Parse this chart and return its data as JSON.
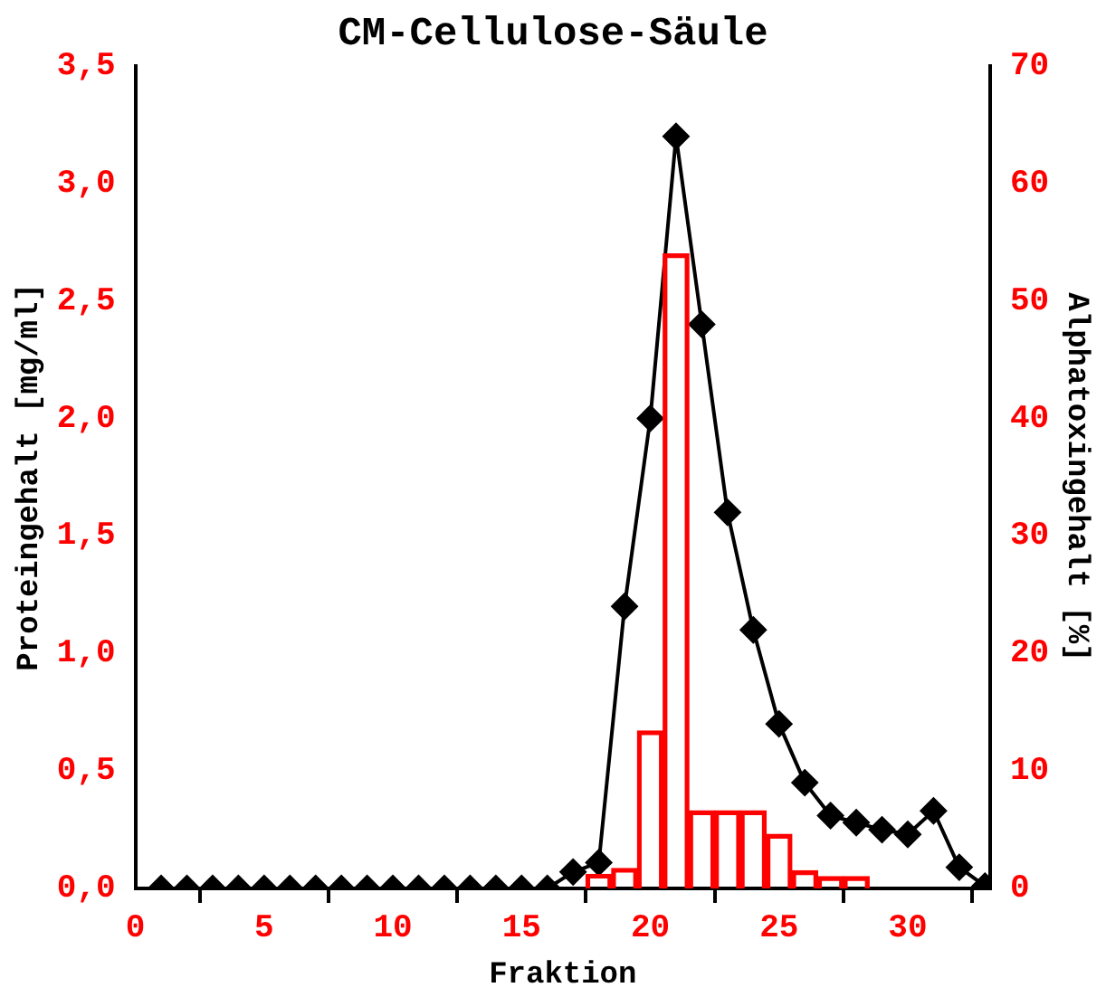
{
  "chart_data": {
    "type": "line",
    "title": "CM-Cellulose-Säule",
    "xlabel": "Fraktion",
    "ylabel": "Proteingehalt [mg/ml]",
    "y2label": "Alphatoxingehalt [%]",
    "xlim": [
      0,
      33.2
    ],
    "xticks": [
      0,
      5,
      10,
      15,
      20,
      25,
      30
    ],
    "ylim": [
      0,
      3.5
    ],
    "yticks": [
      {
        "value": 0,
        "label": "0,0"
      },
      {
        "value": 0.5,
        "label": "0,5"
      },
      {
        "value": 1,
        "label": "1,0"
      },
      {
        "value": 1.5,
        "label": "1,5"
      },
      {
        "value": 2,
        "label": "2,0"
      },
      {
        "value": 2.5,
        "label": "2,5"
      },
      {
        "value": 3,
        "label": "3,0"
      },
      {
        "value": 3.5,
        "label": "3,5"
      }
    ],
    "y2lim": [
      0,
      70
    ],
    "y2ticks": [
      0,
      10,
      20,
      30,
      40,
      50,
      60,
      70
    ],
    "grid": false,
    "legend": false,
    "marker": "diamond",
    "line_style": "solid",
    "series": [
      {
        "type": "bar",
        "axis": "y2",
        "color": "#ff0000",
        "x": [
          17,
          18,
          19,
          20,
          21,
          22,
          23,
          24,
          25,
          26,
          27,
          28,
          29,
          30,
          31,
          32,
          33
        ],
        "values": [
          0,
          1.2,
          1.7,
          13.4,
          54,
          6.6,
          6.6,
          6.6,
          4.6,
          1.5,
          1,
          1,
          0,
          0,
          0,
          0,
          0
        ]
      },
      {
        "axis": "y",
        "color": "#000000",
        "x": [
          1,
          2,
          3,
          4,
          5,
          6,
          7,
          8,
          9,
          10,
          11,
          12,
          13,
          14,
          15,
          16,
          17,
          18,
          19,
          20,
          21,
          22,
          23,
          24,
          25,
          26,
          27,
          28,
          29,
          30,
          31,
          32,
          33
        ],
        "values": [
          0,
          0,
          0,
          0,
          0,
          0,
          0,
          0,
          0,
          0,
          0,
          0,
          0,
          0,
          0,
          0,
          0.07,
          0.11,
          1.2,
          2.0,
          3.2,
          2.4,
          1.6,
          1.1,
          0.7,
          0.45,
          0.31,
          0.28,
          0.25,
          0.23,
          0.33,
          0.09,
          0.01
        ]
      }
    ]
  }
}
